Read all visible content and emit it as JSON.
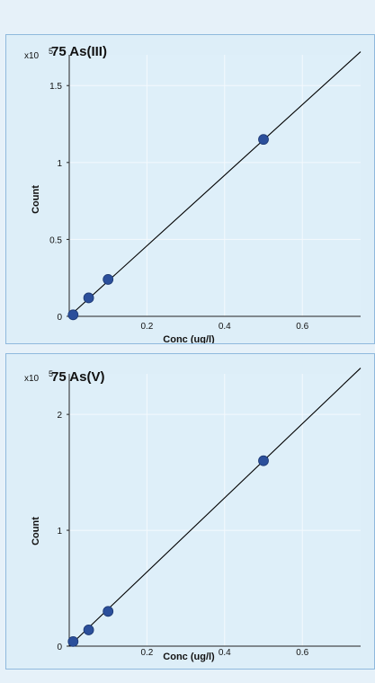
{
  "chart_data": [
    {
      "type": "scatter",
      "title": "75 As(III)",
      "xlabel": "Conc (ug/l)",
      "ylabel": "Count",
      "y_scale_label": "x10",
      "y_scale_exponent": "5",
      "xlim": [
        0,
        0.75
      ],
      "ylim": [
        0,
        1.7
      ],
      "x_ticks": [
        "0.2",
        "0.4",
        "0.6"
      ],
      "x_tick_values": [
        0.2,
        0.4,
        0.6
      ],
      "y_ticks": [
        "0",
        "0.5",
        "1",
        "1.5"
      ],
      "y_tick_values": [
        0,
        0.5,
        1,
        1.5
      ],
      "points": [
        {
          "x": 0.01,
          "y": 0.01
        },
        {
          "x": 0.05,
          "y": 0.12
        },
        {
          "x": 0.1,
          "y": 0.24
        },
        {
          "x": 0.5,
          "y": 1.15
        }
      ],
      "fit_line": {
        "x": [
          0,
          0.75
        ],
        "y": [
          0,
          1.72
        ]
      },
      "grid": true,
      "point_color": "#2b4f9b",
      "line_color": "#000000"
    },
    {
      "type": "scatter",
      "title": "75 As(V)",
      "xlabel": "Conc (ug/l)",
      "ylabel": "Count",
      "y_scale_label": "x10",
      "y_scale_exponent": "5",
      "xlim": [
        0,
        0.75
      ],
      "ylim": [
        0,
        2.35
      ],
      "x_ticks": [
        "0.2",
        "0.4",
        "0.6"
      ],
      "x_tick_values": [
        0.2,
        0.4,
        0.6
      ],
      "y_ticks": [
        "0",
        "1",
        "2"
      ],
      "y_tick_values": [
        0,
        1,
        2
      ],
      "points": [
        {
          "x": 0.01,
          "y": 0.04
        },
        {
          "x": 0.05,
          "y": 0.14
        },
        {
          "x": 0.1,
          "y": 0.3
        },
        {
          "x": 0.5,
          "y": 1.6
        }
      ],
      "fit_line": {
        "x": [
          0,
          0.75
        ],
        "y": [
          0,
          2.4
        ]
      },
      "grid": true,
      "point_color": "#2b4f9b",
      "line_color": "#000000"
    }
  ]
}
